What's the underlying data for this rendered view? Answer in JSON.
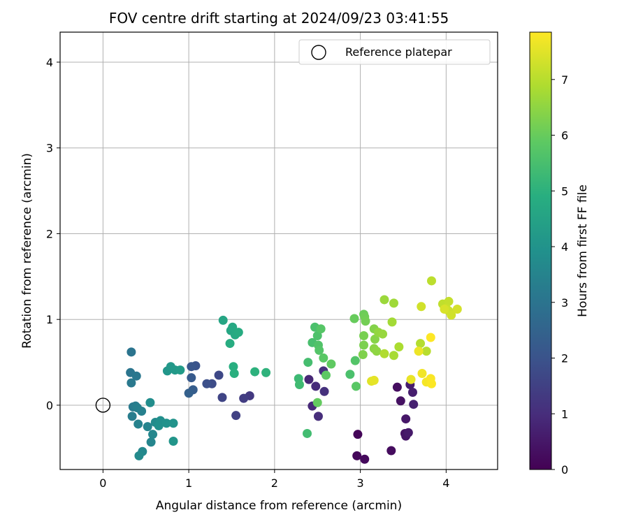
{
  "chart_data": {
    "type": "scatter",
    "title": "FOV centre drift starting at 2024/09/23 03:41:55",
    "xlabel": "Angular distance from reference (arcmin)",
    "ylabel": "Rotation from reference (arcmin)",
    "xlim": [
      -0.5,
      4.6
    ],
    "ylim": [
      -0.75,
      4.35
    ],
    "xticks": [
      "0",
      "1",
      "2",
      "3",
      "4"
    ],
    "yticks": [
      "0",
      "1",
      "2",
      "3",
      "4"
    ],
    "grid": true,
    "legend": {
      "placement": "top-right",
      "entries": [
        "Reference platepar"
      ]
    },
    "reference_point": {
      "x": 0,
      "y": 0
    },
    "colorbar": {
      "label": "Hours from first FF file",
      "range": [
        0,
        7.85
      ],
      "ticks": [
        "0",
        "1",
        "2",
        "3",
        "4",
        "5",
        "6",
        "7"
      ],
      "colormap": "viridis"
    },
    "points": [
      {
        "x": 2.97,
        "y": -0.34,
        "c": 0.1
      },
      {
        "x": 2.96,
        "y": -0.59,
        "c": 0.15
      },
      {
        "x": 3.05,
        "y": -0.63,
        "c": 0.2
      },
      {
        "x": 3.36,
        "y": -0.53,
        "c": 0.25
      },
      {
        "x": 3.43,
        "y": 0.21,
        "c": 0.3
      },
      {
        "x": 3.47,
        "y": 0.05,
        "c": 0.35
      },
      {
        "x": 3.52,
        "y": -0.33,
        "c": 0.4
      },
      {
        "x": 3.53,
        "y": -0.36,
        "c": 0.45
      },
      {
        "x": 3.53,
        "y": -0.16,
        "c": 0.5
      },
      {
        "x": 3.56,
        "y": -0.32,
        "c": 0.55
      },
      {
        "x": 3.58,
        "y": 0.24,
        "c": 0.6
      },
      {
        "x": 3.61,
        "y": 0.15,
        "c": 0.65
      },
      {
        "x": 3.62,
        "y": 0.01,
        "c": 0.7
      },
      {
        "x": 2.4,
        "y": 0.3,
        "c": 0.85
      },
      {
        "x": 2.44,
        "y": -0.01,
        "c": 0.9
      },
      {
        "x": 2.48,
        "y": 0.22,
        "c": 0.95
      },
      {
        "x": 2.51,
        "y": -0.13,
        "c": 1.0
      },
      {
        "x": 2.57,
        "y": 0.4,
        "c": 1.05
      },
      {
        "x": 2.58,
        "y": 0.16,
        "c": 1.1
      },
      {
        "x": 1.71,
        "y": 0.11,
        "c": 1.3
      },
      {
        "x": 1.64,
        "y": 0.08,
        "c": 1.4
      },
      {
        "x": 1.55,
        "y": -0.12,
        "c": 1.5
      },
      {
        "x": 1.39,
        "y": 0.09,
        "c": 1.6
      },
      {
        "x": 1.35,
        "y": 0.35,
        "c": 1.7
      },
      {
        "x": 1.27,
        "y": 0.25,
        "c": 1.8
      },
      {
        "x": 1.21,
        "y": 0.25,
        "c": 1.9
      },
      {
        "x": 1.08,
        "y": 0.46,
        "c": 2.0
      },
      {
        "x": 1.03,
        "y": 0.45,
        "c": 2.1
      },
      {
        "x": 1.03,
        "y": 0.32,
        "c": 2.2
      },
      {
        "x": 1.05,
        "y": 0.18,
        "c": 2.3
      },
      {
        "x": 1.0,
        "y": 0.14,
        "c": 2.4
      },
      {
        "x": 0.33,
        "y": 0.62,
        "c": 3.0
      },
      {
        "x": 0.32,
        "y": 0.38,
        "c": 3.05
      },
      {
        "x": 0.39,
        "y": 0.34,
        "c": 3.1
      },
      {
        "x": 0.33,
        "y": 0.26,
        "c": 3.15
      },
      {
        "x": 0.35,
        "y": -0.02,
        "c": 3.2
      },
      {
        "x": 0.38,
        "y": -0.01,
        "c": 3.25
      },
      {
        "x": 0.34,
        "y": -0.13,
        "c": 3.3
      },
      {
        "x": 0.4,
        "y": -0.03,
        "c": 3.35
      },
      {
        "x": 0.45,
        "y": -0.07,
        "c": 3.4
      },
      {
        "x": 0.41,
        "y": -0.22,
        "c": 3.45
      },
      {
        "x": 0.52,
        "y": -0.25,
        "c": 3.5
      },
      {
        "x": 0.56,
        "y": -0.43,
        "c": 3.55
      },
      {
        "x": 0.58,
        "y": -0.34,
        "c": 3.6
      },
      {
        "x": 0.46,
        "y": -0.54,
        "c": 3.65
      },
      {
        "x": 0.42,
        "y": -0.59,
        "c": 3.7
      },
      {
        "x": 0.61,
        "y": -0.2,
        "c": 3.75
      },
      {
        "x": 0.55,
        "y": 0.03,
        "c": 3.8
      },
      {
        "x": 0.67,
        "y": -0.18,
        "c": 3.85
      },
      {
        "x": 0.65,
        "y": -0.24,
        "c": 3.9
      },
      {
        "x": 0.74,
        "y": -0.21,
        "c": 3.95
      },
      {
        "x": 0.82,
        "y": -0.21,
        "c": 4.0
      },
      {
        "x": 0.82,
        "y": -0.42,
        "c": 4.05
      },
      {
        "x": 0.75,
        "y": 0.4,
        "c": 4.1
      },
      {
        "x": 0.79,
        "y": 0.45,
        "c": 4.15
      },
      {
        "x": 0.84,
        "y": 0.41,
        "c": 4.2
      },
      {
        "x": 0.9,
        "y": 0.41,
        "c": 4.25
      },
      {
        "x": 1.4,
        "y": 0.99,
        "c": 4.6
      },
      {
        "x": 1.49,
        "y": 0.87,
        "c": 4.65
      },
      {
        "x": 1.51,
        "y": 0.91,
        "c": 4.7
      },
      {
        "x": 1.54,
        "y": 0.82,
        "c": 4.75
      },
      {
        "x": 1.58,
        "y": 0.85,
        "c": 4.8
      },
      {
        "x": 1.48,
        "y": 0.72,
        "c": 4.85
      },
      {
        "x": 1.52,
        "y": 0.45,
        "c": 4.9
      },
      {
        "x": 1.53,
        "y": 0.37,
        "c": 4.95
      },
      {
        "x": 1.77,
        "y": 0.39,
        "c": 5.0
      },
      {
        "x": 1.9,
        "y": 0.38,
        "c": 5.05
      },
      {
        "x": 2.28,
        "y": 0.31,
        "c": 5.3
      },
      {
        "x": 2.29,
        "y": 0.24,
        "c": 5.35
      },
      {
        "x": 2.38,
        "y": -0.33,
        "c": 5.4
      },
      {
        "x": 2.39,
        "y": 0.5,
        "c": 5.45
      },
      {
        "x": 2.44,
        "y": 0.73,
        "c": 5.5
      },
      {
        "x": 2.47,
        "y": 0.91,
        "c": 5.55
      },
      {
        "x": 2.5,
        "y": 0.81,
        "c": 5.6
      },
      {
        "x": 2.51,
        "y": 0.7,
        "c": 5.65
      },
      {
        "x": 2.52,
        "y": 0.64,
        "c": 5.7
      },
      {
        "x": 2.54,
        "y": 0.89,
        "c": 5.75
      },
      {
        "x": 2.57,
        "y": 0.55,
        "c": 5.8
      },
      {
        "x": 2.6,
        "y": 0.35,
        "c": 5.85
      },
      {
        "x": 2.66,
        "y": 0.48,
        "c": 5.9
      },
      {
        "x": 2.5,
        "y": 0.03,
        "c": 5.95
      },
      {
        "x": 2.88,
        "y": 0.36,
        "c": 5.55
      },
      {
        "x": 2.94,
        "y": 0.52,
        "c": 5.7
      },
      {
        "x": 2.95,
        "y": 0.22,
        "c": 5.8
      },
      {
        "x": 2.93,
        "y": 1.01,
        "c": 6.0
      },
      {
        "x": 3.04,
        "y": 1.06,
        "c": 6.05
      },
      {
        "x": 3.05,
        "y": 1.03,
        "c": 6.1
      },
      {
        "x": 3.06,
        "y": 0.98,
        "c": 6.15
      },
      {
        "x": 3.04,
        "y": 0.81,
        "c": 6.2
      },
      {
        "x": 3.04,
        "y": 0.7,
        "c": 6.25
      },
      {
        "x": 3.03,
        "y": 0.59,
        "c": 6.3
      },
      {
        "x": 3.16,
        "y": 0.89,
        "c": 6.35
      },
      {
        "x": 3.17,
        "y": 0.77,
        "c": 6.4
      },
      {
        "x": 3.16,
        "y": 0.66,
        "c": 6.45
      },
      {
        "x": 3.19,
        "y": 0.63,
        "c": 6.5
      },
      {
        "x": 3.21,
        "y": 0.85,
        "c": 6.55
      },
      {
        "x": 3.26,
        "y": 0.83,
        "c": 6.6
      },
      {
        "x": 3.28,
        "y": 1.23,
        "c": 6.65
      },
      {
        "x": 3.39,
        "y": 1.19,
        "c": 6.7
      },
      {
        "x": 3.37,
        "y": 0.97,
        "c": 6.75
      },
      {
        "x": 3.39,
        "y": 0.58,
        "c": 6.8
      },
      {
        "x": 3.45,
        "y": 0.68,
        "c": 6.85
      },
      {
        "x": 3.28,
        "y": 0.6,
        "c": 6.9
      },
      {
        "x": 3.7,
        "y": 0.72,
        "c": 6.95
      },
      {
        "x": 3.77,
        "y": 0.63,
        "c": 7.0
      },
      {
        "x": 3.83,
        "y": 1.45,
        "c": 7.05
      },
      {
        "x": 3.96,
        "y": 1.18,
        "c": 7.1
      },
      {
        "x": 4.03,
        "y": 1.21,
        "c": 7.15
      },
      {
        "x": 4.0,
        "y": 1.13,
        "c": 7.2
      },
      {
        "x": 4.03,
        "y": 1.1,
        "c": 7.25
      },
      {
        "x": 4.06,
        "y": 1.05,
        "c": 7.3
      },
      {
        "x": 4.13,
        "y": 1.12,
        "c": 7.35
      },
      {
        "x": 3.98,
        "y": 1.12,
        "c": 7.4
      },
      {
        "x": 3.71,
        "y": 1.15,
        "c": 7.3
      },
      {
        "x": 3.13,
        "y": 0.28,
        "c": 7.5
      },
      {
        "x": 3.16,
        "y": 0.29,
        "c": 7.55
      },
      {
        "x": 3.59,
        "y": 0.3,
        "c": 7.6
      },
      {
        "x": 3.68,
        "y": 0.63,
        "c": 7.65
      },
      {
        "x": 3.72,
        "y": 0.37,
        "c": 7.7
      },
      {
        "x": 3.77,
        "y": 0.27,
        "c": 7.75
      },
      {
        "x": 3.82,
        "y": 0.31,
        "c": 7.8
      },
      {
        "x": 3.83,
        "y": 0.25,
        "c": 7.82
      },
      {
        "x": 3.82,
        "y": 0.79,
        "c": 7.85
      }
    ]
  }
}
